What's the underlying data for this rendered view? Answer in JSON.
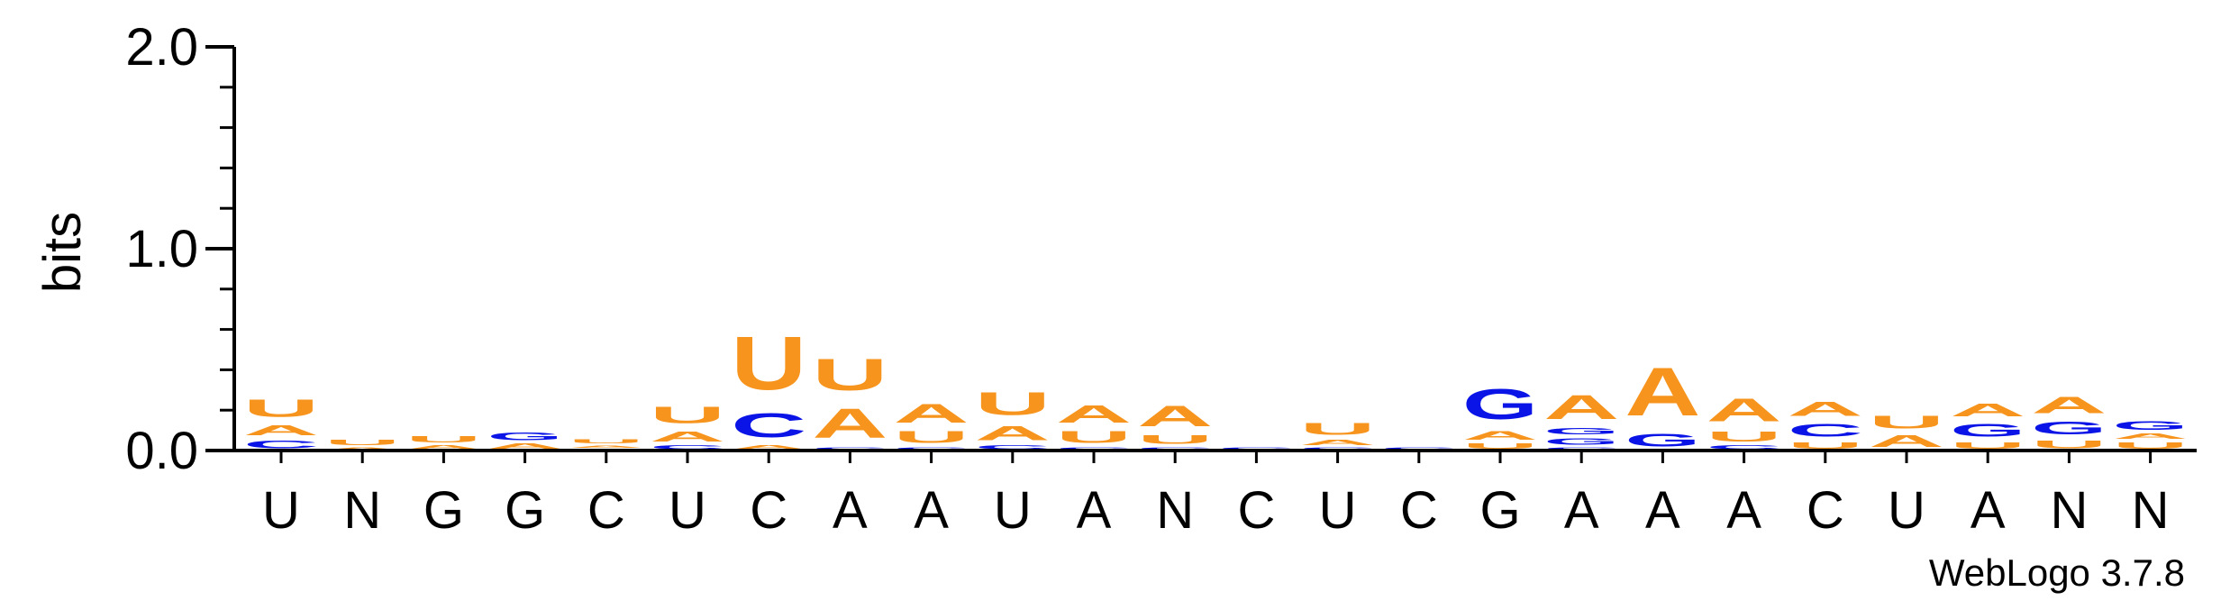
{
  "chart_data": {
    "type": "sequence-logo",
    "title": "",
    "ylabel": "bits",
    "xlabel": "",
    "ylim": [
      0,
      2.0
    ],
    "yticks": [
      "0.0",
      "1.0",
      "2.0"
    ],
    "grid": false,
    "credit": "WebLogo 3.7.8",
    "colors": {
      "A": "#f7941d",
      "U": "#f7941d",
      "C": "#0a14e6",
      "G": "#0a14e6"
    },
    "positions": [
      {
        "consensus": "U",
        "stack": [
          {
            "letter": "C",
            "bits": 0.06
          },
          {
            "letter": "A",
            "bits": 0.08
          },
          {
            "letter": "U",
            "bits": 0.14
          }
        ]
      },
      {
        "consensus": "N",
        "stack": [
          {
            "letter": "A",
            "bits": 0.02
          },
          {
            "letter": "U",
            "bits": 0.04
          }
        ]
      },
      {
        "consensus": "G",
        "stack": [
          {
            "letter": "A",
            "bits": 0.03
          },
          {
            "letter": "U",
            "bits": 0.05
          }
        ]
      },
      {
        "consensus": "G",
        "stack": [
          {
            "letter": "A",
            "bits": 0.04
          },
          {
            "letter": "G",
            "bits": 0.06
          }
        ]
      },
      {
        "consensus": "C",
        "stack": [
          {
            "letter": "C",
            "bits": 0.01
          },
          {
            "letter": "A",
            "bits": 0.02
          },
          {
            "letter": "U",
            "bits": 0.03
          }
        ]
      },
      {
        "consensus": "U",
        "stack": [
          {
            "letter": "C",
            "bits": 0.03
          },
          {
            "letter": "A",
            "bits": 0.08
          },
          {
            "letter": "U",
            "bits": 0.13
          }
        ]
      },
      {
        "consensus": "C",
        "stack": [
          {
            "letter": "A",
            "bits": 0.03
          },
          {
            "letter": "C",
            "bits": 0.19
          },
          {
            "letter": "U",
            "bits": 0.42
          }
        ]
      },
      {
        "consensus": "A",
        "stack": [
          {
            "letter": "C",
            "bits": 0.02
          },
          {
            "letter": "A",
            "bits": 0.23
          },
          {
            "letter": "U",
            "bits": 0.25
          }
        ]
      },
      {
        "consensus": "A",
        "stack": [
          {
            "letter": "C",
            "bits": 0.02
          },
          {
            "letter": "U",
            "bits": 0.09
          },
          {
            "letter": "A",
            "bits": 0.15
          }
        ]
      },
      {
        "consensus": "U",
        "stack": [
          {
            "letter": "C",
            "bits": 0.03
          },
          {
            "letter": "A",
            "bits": 0.11
          },
          {
            "letter": "U",
            "bits": 0.18
          }
        ]
      },
      {
        "consensus": "A",
        "stack": [
          {
            "letter": "C",
            "bits": 0.02
          },
          {
            "letter": "U",
            "bits": 0.09
          },
          {
            "letter": "A",
            "bits": 0.14
          }
        ]
      },
      {
        "consensus": "N",
        "stack": [
          {
            "letter": "C",
            "bits": 0.02
          },
          {
            "letter": "U",
            "bits": 0.07
          },
          {
            "letter": "A",
            "bits": 0.16
          }
        ]
      },
      {
        "consensus": "C",
        "stack": [
          {
            "letter": "C",
            "bits": 0.02
          }
        ]
      },
      {
        "consensus": "U",
        "stack": [
          {
            "letter": "C",
            "bits": 0.02
          },
          {
            "letter": "A",
            "bits": 0.04
          },
          {
            "letter": "U",
            "bits": 0.09
          }
        ]
      },
      {
        "consensus": "C",
        "stack": [
          {
            "letter": "C",
            "bits": 0.02
          }
        ]
      },
      {
        "consensus": "G",
        "stack": [
          {
            "letter": "U",
            "bits": 0.04
          },
          {
            "letter": "A",
            "bits": 0.07
          },
          {
            "letter": "G",
            "bits": 0.24
          }
        ]
      },
      {
        "consensus": "A",
        "stack": [
          {
            "letter": "C",
            "bits": 0.02
          },
          {
            "letter": "G",
            "bits": 0.05
          },
          {
            "letter": "G",
            "bits": 0.05
          },
          {
            "letter": "A",
            "bits": 0.19
          }
        ]
      },
      {
        "consensus": "A",
        "stack": [
          {
            "letter": "G",
            "bits": 0.1
          },
          {
            "letter": "A",
            "bits": 0.38
          }
        ]
      },
      {
        "consensus": "A",
        "stack": [
          {
            "letter": "C",
            "bits": 0.03
          },
          {
            "letter": "U",
            "bits": 0.08
          },
          {
            "letter": "A",
            "bits": 0.18
          }
        ]
      },
      {
        "consensus": "C",
        "stack": [
          {
            "letter": "U",
            "bits": 0.05
          },
          {
            "letter": "C",
            "bits": 0.1
          },
          {
            "letter": "A",
            "bits": 0.11
          }
        ]
      },
      {
        "consensus": "U",
        "stack": [
          {
            "letter": "A",
            "bits": 0.09
          },
          {
            "letter": "U",
            "bits": 0.1
          }
        ]
      },
      {
        "consensus": "A",
        "stack": [
          {
            "letter": "U",
            "bits": 0.05
          },
          {
            "letter": "G",
            "bits": 0.1
          },
          {
            "letter": "A",
            "bits": 0.1
          }
        ]
      },
      {
        "consensus": "N",
        "stack": [
          {
            "letter": "U",
            "bits": 0.06
          },
          {
            "letter": "G",
            "bits": 0.1
          },
          {
            "letter": "A",
            "bits": 0.13
          }
        ]
      },
      {
        "consensus": "N",
        "stack": [
          {
            "letter": "U",
            "bits": 0.05
          },
          {
            "letter": "A",
            "bits": 0.04
          },
          {
            "letter": "G",
            "bits": 0.07
          }
        ]
      }
    ]
  }
}
